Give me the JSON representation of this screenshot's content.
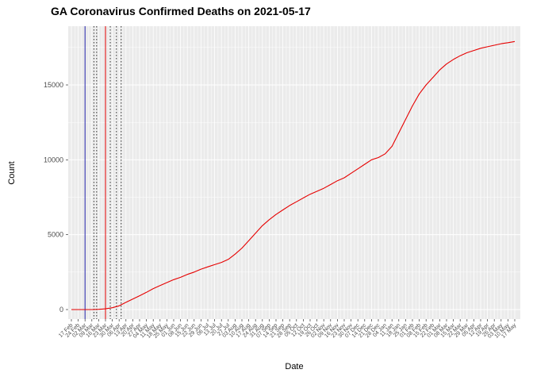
{
  "chart_data": {
    "type": "line",
    "title": "GA Coronavirus Confirmed Deaths on 2021-05-17",
    "xlabel": "Date",
    "ylabel": "Count",
    "grid": "on",
    "legend": "none",
    "panel_background": "#ebebeb",
    "grid_color": "#ffffff",
    "tick_label_color": "#4d4d4d",
    "y_ticks": [
      0,
      5000,
      10000,
      15000
    ],
    "y_minor_ticks": [
      2500,
      7500,
      12500,
      17500
    ],
    "ylim": [
      0,
      18900
    ],
    "categories": [
      "17 Feb",
      "24 Feb",
      "02 Mar",
      "09 Mar",
      "16 Mar",
      "23 Mar",
      "30 Mar",
      "06 Apr",
      "13 Apr",
      "20 Apr",
      "27 Apr",
      "04 May",
      "11 May",
      "18 May",
      "25 May",
      "01 Jun",
      "08 Jun",
      "15 Jun",
      "22 Jun",
      "29 Jun",
      "06 Jul",
      "13 Jul",
      "20 Jul",
      "27 Jul",
      "03 Aug",
      "10 Aug",
      "17 Aug",
      "24 Aug",
      "31 Aug",
      "07 Sep",
      "14 Sep",
      "21 Sep",
      "28 Sep",
      "05 Oct",
      "12 Oct",
      "19 Oct",
      "26 Oct",
      "02 Nov",
      "09 Nov",
      "16 Nov",
      "23 Nov",
      "30 Nov",
      "07 Dec",
      "14 Dec",
      "21 Dec",
      "28 Dec",
      "04 Jan",
      "11 Jan",
      "18 Jan",
      "25 Jan",
      "01 Feb",
      "08 Feb",
      "15 Feb",
      "22 Feb",
      "01 Mar",
      "08 Mar",
      "15 Mar",
      "22 Mar",
      "29 Mar",
      "05 Apr",
      "12 Apr",
      "19 Apr",
      "26 Apr",
      "03 May",
      "10 May",
      "17 May"
    ],
    "series": [
      {
        "name": "confirmed-deaths",
        "color": "#e60000",
        "values": [
          0,
          0,
          0,
          1,
          14,
          50,
          120,
          250,
          480,
          700,
          920,
          1150,
          1400,
          1600,
          1800,
          2000,
          2150,
          2350,
          2500,
          2700,
          2850,
          3000,
          3150,
          3350,
          3700,
          4100,
          4600,
          5100,
          5600,
          6000,
          6350,
          6650,
          6950,
          7200,
          7450,
          7700,
          7900,
          8100,
          8350,
          8600,
          8800,
          9100,
          9400,
          9700,
          10000,
          10150,
          10400,
          10900,
          11800,
          12700,
          13600,
          14400,
          15000,
          15500,
          16000,
          16400,
          16700,
          16950,
          17150,
          17300,
          17450,
          17550,
          17650,
          17750,
          17820,
          17900
        ]
      }
    ],
    "vlines": [
      {
        "x_index": 2.0,
        "style": "solid",
        "color": "#2222aa"
      },
      {
        "x_index": 3.3,
        "style": "dotted",
        "color": "#303030"
      },
      {
        "x_index": 3.7,
        "style": "dotted",
        "color": "#303030"
      },
      {
        "x_index": 5.0,
        "style": "solid",
        "color": "#e60000"
      },
      {
        "x_index": 5.7,
        "style": "dotted",
        "color": "#303030"
      },
      {
        "x_index": 6.6,
        "style": "dotted",
        "color": "#303030"
      },
      {
        "x_index": 7.3,
        "style": "dotted",
        "color": "#303030"
      }
    ]
  }
}
